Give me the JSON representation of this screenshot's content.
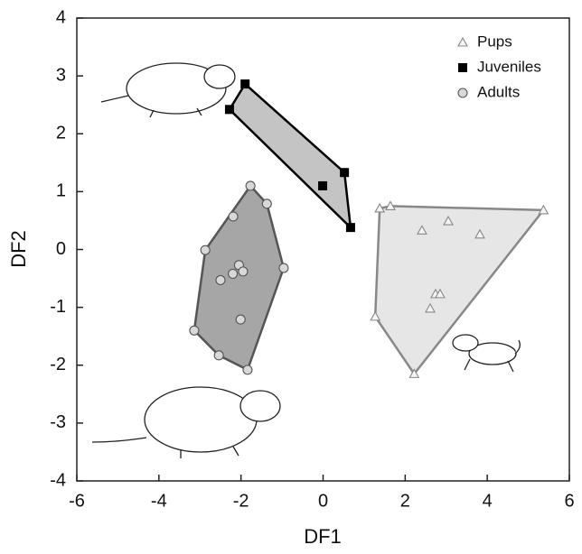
{
  "chart_data": {
    "type": "scatter",
    "x_label": "DF1",
    "y_label": "DF2",
    "xlim": [
      -6,
      6
    ],
    "ylim": [
      -4,
      4
    ],
    "xticks": [
      -6,
      -4,
      -2,
      0,
      2,
      4,
      6
    ],
    "yticks": [
      -4,
      -3,
      -2,
      -1,
      0,
      1,
      2,
      3,
      4
    ],
    "grid": false,
    "legend": "upper right",
    "series": [
      {
        "name": "Pups",
        "marker": "triangle",
        "color": "#888888",
        "fill": "#e6e6e6",
        "x": [
          1.38,
          1.64,
          5.37,
          2.41,
          3.05,
          3.82,
          1.27,
          2.22,
          2.74,
          2.85,
          2.61
        ],
        "values": [
          0.71,
          0.75,
          0.68,
          0.33,
          0.49,
          0.26,
          -1.16,
          -2.15,
          -0.77,
          -0.77,
          -1.02
        ]
      },
      {
        "name": "Juveniles",
        "marker": "square",
        "color": "#000000",
        "fill": "#c4c4c4",
        "x": [
          -2.28,
          -1.9,
          0.52,
          -0.01,
          0.67
        ],
        "values": [
          2.42,
          2.86,
          1.33,
          1.1,
          0.38
        ]
      },
      {
        "name": "Adults",
        "marker": "circle",
        "color": "#555555",
        "fill": "#a6a6a6",
        "x": [
          -1.77,
          -1.37,
          -2.19,
          -2.87,
          -2.05,
          -2.2,
          -1.95,
          -2.5,
          -0.96,
          -2.01,
          -3.14,
          -2.54,
          -1.84
        ],
        "values": [
          1.1,
          0.79,
          0.57,
          -0.01,
          -0.27,
          -0.42,
          -0.38,
          -0.53,
          -0.32,
          -1.21,
          -1.4,
          -1.83,
          -2.08
        ]
      }
    ]
  }
}
